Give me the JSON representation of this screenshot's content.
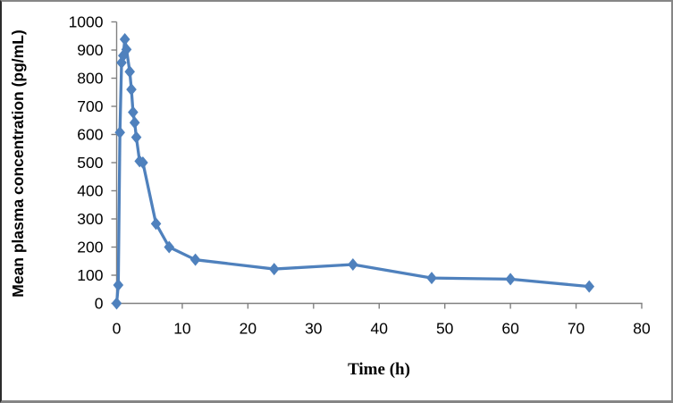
{
  "frame": {
    "background": "#ffffff",
    "border_color": "#868686",
    "border_color_left": "#2b2b2b"
  },
  "chart_data": {
    "type": "line",
    "title": "",
    "xlabel": "Time (h)",
    "ylabel": "Mean plasma concentration (pg/mL)",
    "x": [
      0,
      0.25,
      0.5,
      0.75,
      1,
      1.25,
      1.5,
      2,
      2.25,
      2.5,
      2.75,
      3,
      3.5,
      4,
      6,
      8,
      12,
      24,
      36,
      48,
      60,
      72
    ],
    "y": [
      0,
      65,
      607,
      855,
      880,
      938,
      902,
      823,
      760,
      679,
      642,
      590,
      505,
      500,
      283,
      200,
      155,
      122,
      138,
      90,
      86,
      60
    ],
    "xlim": [
      0,
      80
    ],
    "ylim": [
      0,
      1000
    ],
    "x_ticks": [
      0,
      10,
      20,
      30,
      40,
      50,
      60,
      70,
      80
    ],
    "y_ticks": [
      0,
      100,
      200,
      300,
      400,
      500,
      600,
      700,
      800,
      900,
      1000
    ],
    "grid": false,
    "legend": false,
    "marker": "diamond",
    "line_color": "#4f81bd",
    "marker_color": "#4f81bd",
    "axis_color": "#808080",
    "text_color": "#000000"
  }
}
